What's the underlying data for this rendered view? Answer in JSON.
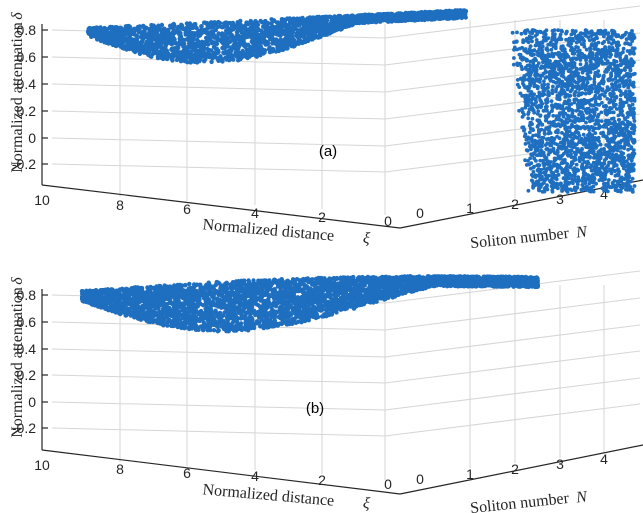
{
  "colors": {
    "points": "#1f6fc0",
    "axis": "#262626",
    "grid": "#d6d6d6"
  },
  "chart_data": [
    {
      "type": "scatter",
      "subtype": "3d-scatter",
      "panel_label": "(a)",
      "xlabel": "Normalized distance",
      "xlabel_symbol": "ξ",
      "ylabel": "Soliton number",
      "ylabel_symbol": "N",
      "zlabel": "Normalized attenuation",
      "zlabel_symbol": "δ",
      "x_ticks": [
        "10",
        "8",
        "6",
        "4",
        "2",
        "0"
      ],
      "y_ticks": [
        "0",
        "1",
        "2",
        "3",
        "4"
      ],
      "z_ticks": [
        "0.8",
        "0.6",
        "0.4",
        "0.2",
        "0",
        "-0.2"
      ],
      "xlim": [
        0,
        10
      ],
      "ylim": [
        0,
        4.2
      ],
      "zlim": [
        -0.3,
        0.85
      ],
      "grid": true,
      "series": [
        {
          "clusters": [
            {
              "description_region": "upper-sheet",
              "xi_range": [
                0,
                10
              ],
              "N_range": [
                4,
                4.2
              ],
              "delta_range": [
                0.58,
                0.82
              ]
            },
            {
              "description_region": "side-wall",
              "xi_range": [
                0,
                0.3
              ],
              "N_range": [
                2.4,
                4.2
              ],
              "delta_range": [
                -0.25,
                0.82
              ]
            }
          ]
        }
      ]
    },
    {
      "type": "scatter",
      "subtype": "3d-scatter",
      "panel_label": "(b)",
      "xlabel": "Normalized distance",
      "xlabel_symbol": "ξ",
      "ylabel": "Soliton number",
      "ylabel_symbol": "N",
      "zlabel": "Normalized attenuation",
      "zlabel_symbol": "δ",
      "x_ticks": [
        "10",
        "8",
        "6",
        "4",
        "2",
        "0"
      ],
      "y_ticks": [
        "0",
        "1",
        "2",
        "3",
        "4"
      ],
      "z_ticks": [
        "0.8",
        "0.6",
        "0.4",
        "0.2",
        "0",
        "-0.2"
      ],
      "xlim": [
        0,
        10
      ],
      "ylim": [
        0,
        4.2
      ],
      "zlim": [
        -0.3,
        0.85
      ],
      "grid": true,
      "series": [
        {
          "clusters": [
            {
              "description_region": "upper-sheet",
              "xi_range": [
                0,
                10
              ],
              "N_range": [
                3.5,
                4.2
              ],
              "delta_range": [
                0.45,
                0.82
              ]
            }
          ]
        }
      ]
    }
  ]
}
